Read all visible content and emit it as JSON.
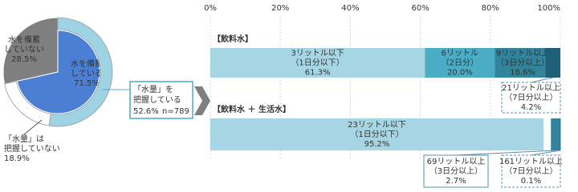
{
  "chart_data": [
    {
      "type": "donut",
      "inner": [
        {
          "label": [
            "水を備蓄",
            "している"
          ],
          "value": 71.5,
          "value_label": "71.5%",
          "color": "#4a7fd4"
        },
        {
          "label": [
            "水を備蓄",
            "していない"
          ],
          "value": 28.5,
          "value_label": "28.5%",
          "color": "#7f7f7f"
        }
      ],
      "outer": [
        {
          "label": [
            "「水量」を",
            "把握している"
          ],
          "value": 52.6,
          "value_label": "52.6%",
          "color": "#9dd3e3"
        },
        {
          "label": [
            "「水量」は",
            "把握していない"
          ],
          "value": 18.9,
          "value_label": "18.9%",
          "color": "#ffffff"
        }
      ],
      "n_label": "n=789"
    },
    {
      "type": "stacked-bar",
      "xlim": [
        0,
        100
      ],
      "xticks": [
        {
          "value": 0,
          "label": "0%"
        },
        {
          "value": 20,
          "label": "20%"
        },
        {
          "value": 40,
          "label": "40%"
        },
        {
          "value": 60,
          "label": "60%"
        },
        {
          "value": 80,
          "label": "80%"
        },
        {
          "value": 100,
          "label": "100%"
        }
      ],
      "grid": true,
      "bars": [
        {
          "title": "【飲料水】",
          "segments": [
            {
              "label": [
                "3リットル以下",
                "（1日分以下）"
              ],
              "value": 61.3,
              "value_label": "61.3%",
              "color": "#a6d5e3"
            },
            {
              "label": [
                "6リットル",
                "（2日分）"
              ],
              "value": 20.0,
              "value_label": "20.0%",
              "color": "#4bacc6"
            },
            {
              "label": [
                "9リットル以上",
                "（3日分以上）"
              ],
              "value": 18.6,
              "value_label": "18.6%",
              "color": "#31849b"
            }
          ],
          "subsegments": [
            {
              "label": [
                "21リットル以上",
                "（7日分以上）"
              ],
              "value": 4.2,
              "value_label": "4.2%",
              "color": "#1f5f7a"
            }
          ]
        },
        {
          "title": "【飲料水 ＋ 生活水】",
          "segments": [
            {
              "label": [
                "23リットル以下",
                "（1日分以下）"
              ],
              "value": 95.2,
              "value_label": "95.2%",
              "color": "#a6d5e3"
            }
          ],
          "subsegments": [
            {
              "label": [
                "69リットル以上",
                "（3日分以上）"
              ],
              "value": 2.7,
              "value_label": "2.7%",
              "color": "#31849b"
            },
            {
              "label": [
                "161リットル以上",
                "（7日分以上）"
              ],
              "value": 0.1,
              "value_label": "0.1%",
              "color": "#1f5f7a"
            }
          ]
        }
      ]
    }
  ]
}
